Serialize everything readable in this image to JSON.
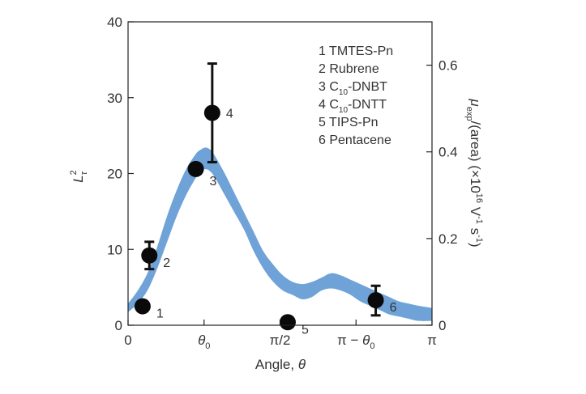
{
  "chart_data": {
    "type": "scatter",
    "x_axis": {
      "label": "Angle, θ",
      "range": [
        0,
        3.14159
      ],
      "ticks": [
        {
          "value": 0,
          "label": "0"
        },
        {
          "value": 0.7854,
          "label": "θ0"
        },
        {
          "value": 1.5708,
          "label": "π/2"
        },
        {
          "value": 2.3562,
          "label": "π − θ0"
        },
        {
          "value": 3.14159,
          "label": "π"
        }
      ]
    },
    "y_left": {
      "label": "L²τ",
      "range": [
        0,
        40
      ],
      "ticks": [
        0,
        10,
        20,
        30,
        40
      ]
    },
    "y_right": {
      "label": "μexp/(area) (×10¹⁶ V⁻¹ s⁻¹)",
      "range": [
        0,
        0.7
      ],
      "ticks": [
        {
          "value": 0,
          "label": "0"
        },
        {
          "value": 0.2,
          "label": "0.2"
        },
        {
          "value": 0.4,
          "label": "0.4"
        },
        {
          "value": 0.6,
          "label": "0.6"
        }
      ]
    },
    "band": {
      "color": "#6fa3d8",
      "axis": "right",
      "x": [
        0.0,
        0.1,
        0.2,
        0.3,
        0.4,
        0.5,
        0.6,
        0.7,
        0.75,
        0.8,
        0.85,
        0.9,
        1.0,
        1.1,
        1.2,
        1.3,
        1.4,
        1.5,
        1.6,
        1.7,
        1.8,
        1.9,
        2.0,
        2.1,
        2.2,
        2.3,
        2.4,
        2.5,
        2.6,
        2.7,
        2.8,
        2.9,
        3.0,
        3.14
      ],
      "lower": [
        0.03,
        0.05,
        0.08,
        0.13,
        0.19,
        0.25,
        0.3,
        0.34,
        0.355,
        0.36,
        0.355,
        0.34,
        0.3,
        0.26,
        0.22,
        0.17,
        0.13,
        0.1,
        0.08,
        0.07,
        0.06,
        0.065,
        0.08,
        0.085,
        0.08,
        0.07,
        0.055,
        0.045,
        0.035,
        0.025,
        0.02,
        0.015,
        0.01,
        0.01
      ],
      "upper": [
        0.05,
        0.08,
        0.12,
        0.18,
        0.25,
        0.31,
        0.36,
        0.395,
        0.405,
        0.41,
        0.405,
        0.39,
        0.35,
        0.305,
        0.26,
        0.215,
        0.17,
        0.14,
        0.115,
        0.1,
        0.095,
        0.1,
        0.11,
        0.12,
        0.115,
        0.105,
        0.095,
        0.085,
        0.075,
        0.065,
        0.055,
        0.05,
        0.045,
        0.04
      ]
    },
    "points": [
      {
        "label": "1",
        "x": 0.15,
        "y": 2.5
      },
      {
        "label": "2",
        "x": 0.22,
        "y": 9.2,
        "err_low": 7.4,
        "err_high": 11.0
      },
      {
        "label": "3",
        "x": 0.7,
        "y": 20.6
      },
      {
        "label": "4",
        "x": 0.87,
        "y": 28.0,
        "err_low": 21.5,
        "err_high": 34.5
      },
      {
        "label": "5",
        "x": 1.65,
        "y": 0.4
      },
      {
        "label": "6",
        "x": 2.56,
        "y": 3.3,
        "err_low": 1.3,
        "err_high": 5.2
      }
    ],
    "legend": {
      "placement": "top-right",
      "entries": [
        "1 TMTES-Pn",
        "2 Rubrene",
        "3 C10-DNBT",
        "4 C10-DNTT",
        "5 TIPS-Pn",
        "6 Pentacene"
      ]
    }
  }
}
